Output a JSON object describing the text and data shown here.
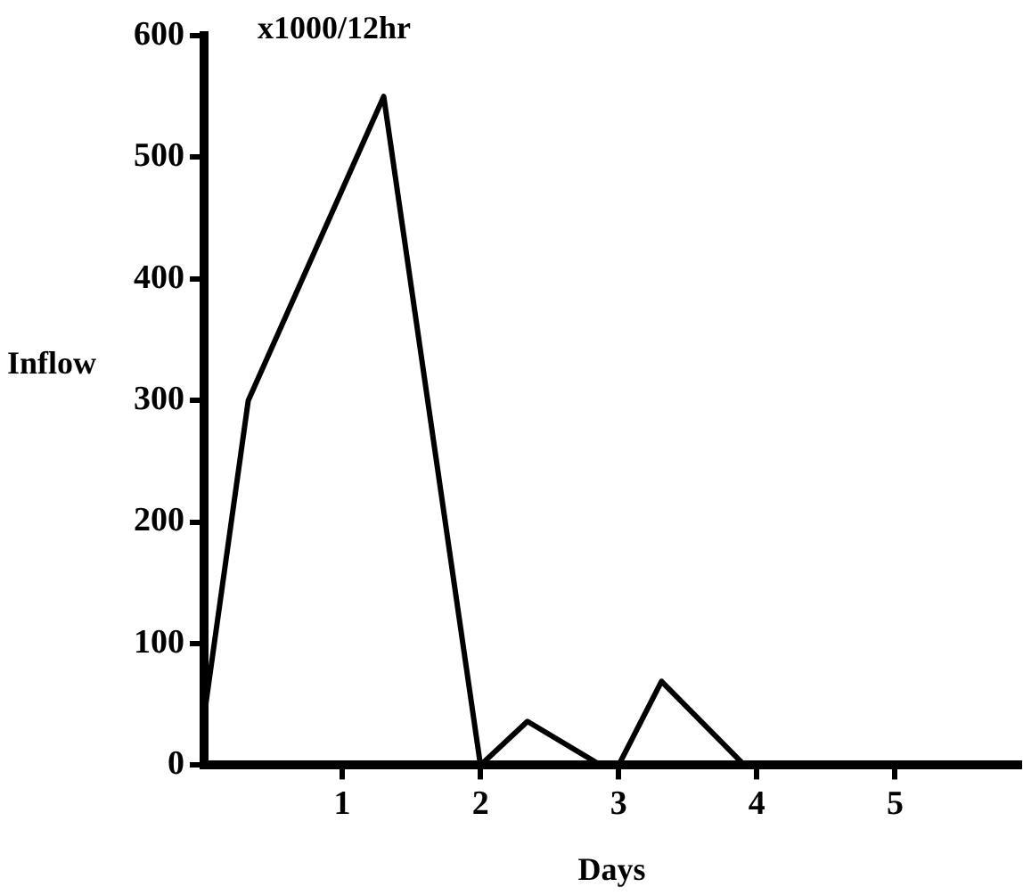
{
  "chart_data": {
    "type": "line",
    "xlabel": "Days",
    "ylabel": "Inflow",
    "annotations": [
      "x1000/12hr"
    ],
    "series": [
      {
        "color": "#000000",
        "x": [
          0,
          0.32,
          1.3,
          2,
          2.34,
          2.87,
          3,
          3.31,
          3.91
        ],
        "values": [
          40,
          300,
          550,
          0,
          36,
          0,
          0,
          69,
          0
        ]
      }
    ],
    "xlim": [
      0,
      5.9
    ],
    "xticks": [
      1,
      2,
      3,
      4,
      5
    ],
    "ylim": [
      0,
      600
    ],
    "yticks": [
      0,
      100,
      200,
      300,
      400,
      500,
      600
    ],
    "grid": false,
    "legend": false,
    "marker": "none",
    "line_style": "solid"
  }
}
